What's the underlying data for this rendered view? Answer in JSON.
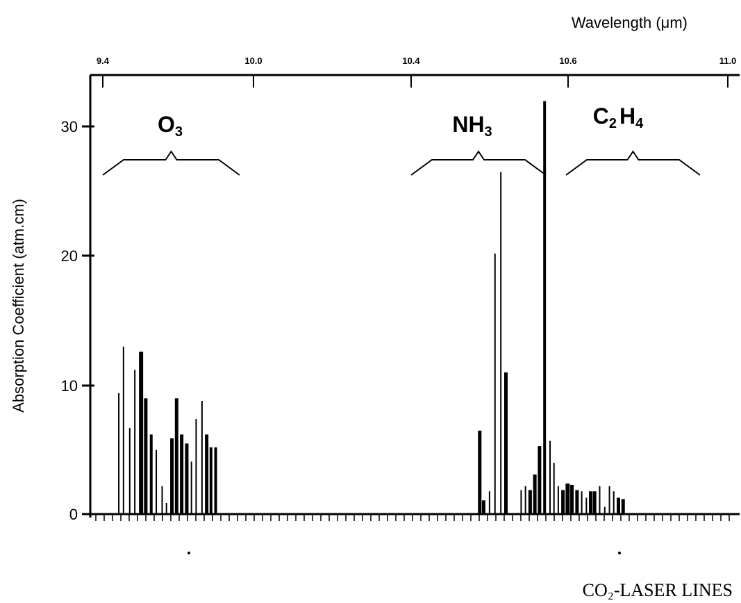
{
  "chart_data": {
    "type": "bar",
    "title": "",
    "xlabel_top": "Wavelength (μm)",
    "xlabel_bottom": "CO₂-LASER LINES",
    "ylabel": "Absorption Coefficient (atm.cm)",
    "xlim": [
      9.4,
      11.0
    ],
    "ylim": [
      0,
      33
    ],
    "x_ticks": [
      "9.4",
      "10.0",
      "10.4",
      "10.6",
      "11.0"
    ],
    "y_ticks": [
      "0",
      "10",
      "20",
      "30"
    ],
    "grid": false,
    "legend": "none",
    "groups": [
      {
        "label_main": "O",
        "label_sub": "3",
        "x_range": [
          9.4,
          9.85
        ],
        "label_x": 9.6
      },
      {
        "label_main": "NH",
        "label_sub": "3",
        "x_range": [
          10.4,
          10.6
        ],
        "label_x": 10.5
      },
      {
        "label_main": "C",
        "label_sub": "2",
        "label_main2": "H",
        "label_sub2": "4",
        "x_range": [
          10.62,
          10.99
        ],
        "label_x": 10.7
      }
    ],
    "series": [
      {
        "x": [
          9.441,
          9.453,
          9.469,
          9.482,
          9.498,
          9.51,
          9.524,
          9.537,
          9.552,
          9.563,
          9.577,
          9.589,
          9.602,
          9.615,
          9.627,
          9.639,
          9.654,
          9.666,
          9.677,
          9.689,
          9.701,
          9.713,
          9.724
        ],
        "y": [
          9.2,
          12.8,
          6.5,
          11.0,
          12.4,
          8.8,
          6.0,
          4.8,
          2.0,
          0.7,
          5.7,
          8.8,
          6.0,
          5.3,
          3.9,
          7.2,
          8.6,
          6.0,
          5.0,
          5.0,
          0,
          0,
          0
        ]
      },
      {
        "x": [
          10.365,
          10.375,
          10.39,
          10.404,
          10.419,
          10.432
        ],
        "y": [
          6.3,
          0.9,
          1.6,
          20.0,
          26.3,
          10.8
        ]
      },
      {
        "x": [
          10.471,
          10.482,
          10.494,
          10.506,
          10.518,
          10.531,
          10.545,
          10.555,
          10.566,
          10.578,
          10.59,
          10.601,
          10.614,
          10.626,
          10.638,
          10.649,
          10.659,
          10.672,
          10.685,
          10.697,
          10.708,
          10.72,
          10.732,
          10.744,
          10.757,
          10.769,
          10.779
        ],
        "y": [
          1.7,
          2.0,
          1.7,
          2.9,
          5.1,
          31.8,
          5.5,
          3.8,
          2.0,
          1.7,
          2.2,
          2.1,
          1.7,
          1.6,
          1.1,
          1.6,
          1.6,
          2.0,
          0.4,
          2.0,
          1.6,
          1.1,
          1.0,
          0,
          0,
          0,
          0
        ]
      }
    ]
  }
}
